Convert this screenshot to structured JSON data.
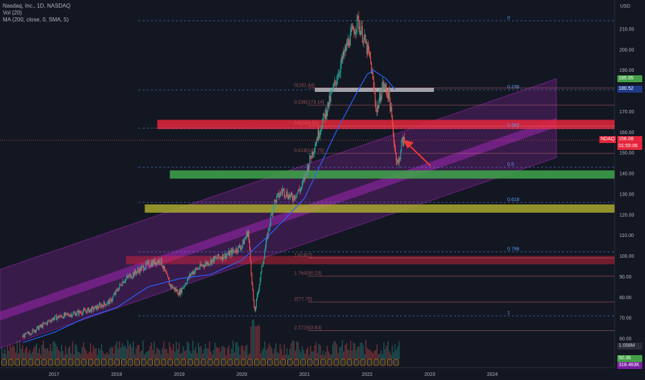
{
  "legend": {
    "title": "Nasdaq, Inc., 1D, NASDAQ",
    "vol": "Vol (20)",
    "ma": "MA (200, close, 0, SMA, 5)"
  },
  "colors": {
    "background": "#131722",
    "up": "#26a69a",
    "down": "#ef5350",
    "ma": "#2962ff",
    "channel": "#9c27b0",
    "red_zone": "#e5263b",
    "green_zone": "#3fa64a",
    "yellow_zone": "#b2b230",
    "gray_bar": "#bdbdbd",
    "fib": "#5b9cf6"
  },
  "price_badges": {
    "current": "156.08",
    "timer": "01:55:06",
    "ticker": "NDAQ",
    "high_level": "185.95",
    "ma_level": "180.52",
    "vol_value": "1.058M",
    "bottom1": "50.36",
    "bottom2": "318.463K"
  },
  "chart_data": {
    "type": "candlestick",
    "title": "Nasdaq, Inc., 1D, NASDAQ",
    "ylabel": "USD",
    "ylim": [
      50,
      217
    ],
    "y_ticks": [
      "60.00",
      "70.00",
      "80.00",
      "90.00",
      "100.00",
      "110.00",
      "120.00",
      "130.00",
      "140.00",
      "150.00",
      "160.00",
      "170.00",
      "180.00",
      "190.00",
      "200.00",
      "210.00"
    ],
    "x_ticks": [
      "2017",
      "2018",
      "2019",
      "2020",
      "2021",
      "2022",
      "2023",
      "2024"
    ],
    "price_path": [
      {
        "x": 2016.5,
        "y": 61
      },
      {
        "x": 2016.8,
        "y": 66
      },
      {
        "x": 2017.0,
        "y": 70
      },
      {
        "x": 2017.3,
        "y": 72
      },
      {
        "x": 2017.6,
        "y": 74
      },
      {
        "x": 2017.9,
        "y": 78
      },
      {
        "x": 2018.1,
        "y": 88
      },
      {
        "x": 2018.3,
        "y": 92
      },
      {
        "x": 2018.5,
        "y": 96
      },
      {
        "x": 2018.7,
        "y": 98
      },
      {
        "x": 2018.85,
        "y": 86
      },
      {
        "x": 2019.0,
        "y": 82
      },
      {
        "x": 2019.2,
        "y": 92
      },
      {
        "x": 2019.4,
        "y": 96
      },
      {
        "x": 2019.6,
        "y": 99
      },
      {
        "x": 2019.8,
        "y": 101
      },
      {
        "x": 2020.0,
        "y": 105
      },
      {
        "x": 2020.1,
        "y": 112
      },
      {
        "x": 2020.2,
        "y": 72
      },
      {
        "x": 2020.35,
        "y": 100
      },
      {
        "x": 2020.5,
        "y": 125
      },
      {
        "x": 2020.65,
        "y": 132
      },
      {
        "x": 2020.8,
        "y": 128
      },
      {
        "x": 2020.95,
        "y": 133
      },
      {
        "x": 2021.1,
        "y": 148
      },
      {
        "x": 2021.25,
        "y": 162
      },
      {
        "x": 2021.4,
        "y": 175
      },
      {
        "x": 2021.55,
        "y": 190
      },
      {
        "x": 2021.7,
        "y": 204
      },
      {
        "x": 2021.85,
        "y": 214
      },
      {
        "x": 2021.95,
        "y": 205
      },
      {
        "x": 2022.05,
        "y": 195
      },
      {
        "x": 2022.15,
        "y": 170
      },
      {
        "x": 2022.25,
        "y": 183
      },
      {
        "x": 2022.35,
        "y": 178
      },
      {
        "x": 2022.45,
        "y": 150
      },
      {
        "x": 2022.5,
        "y": 144
      },
      {
        "x": 2022.55,
        "y": 155
      },
      {
        "x": 2022.6,
        "y": 156.08
      }
    ],
    "ma200_path": [
      {
        "x": 2016.5,
        "y": 58
      },
      {
        "x": 2017.0,
        "y": 63
      },
      {
        "x": 2017.5,
        "y": 70
      },
      {
        "x": 2018.0,
        "y": 75
      },
      {
        "x": 2018.5,
        "y": 85
      },
      {
        "x": 2019.0,
        "y": 89
      },
      {
        "x": 2019.5,
        "y": 91
      },
      {
        "x": 2020.0,
        "y": 98
      },
      {
        "x": 2020.5,
        "y": 112
      },
      {
        "x": 2021.0,
        "y": 128
      },
      {
        "x": 2021.5,
        "y": 160
      },
      {
        "x": 2021.85,
        "y": 180
      },
      {
        "x": 2022.0,
        "y": 188
      },
      {
        "x": 2022.1,
        "y": 190
      },
      {
        "x": 2022.3,
        "y": 186
      },
      {
        "x": 2022.45,
        "y": 180.52
      }
    ],
    "fib_levels": [
      {
        "label": "0",
        "price": 214
      },
      {
        "label": "0.236",
        "price": 180.52
      },
      {
        "label": "0.382",
        "price": 162
      },
      {
        "label": "0.5",
        "price": 143
      },
      {
        "label": "0.618",
        "price": 126
      },
      {
        "label": "0.786",
        "price": 102
      },
      {
        "label": "1",
        "price": 71
      }
    ],
    "ext_levels": [
      {
        "label": "0(181.44)",
        "price": 181.44
      },
      {
        "label": "0.236(173.14)",
        "price": 173.14
      },
      {
        "label": "0.5(163.00)",
        "price": 163.0
      },
      {
        "label": "0.618(149.75)",
        "price": 149.75
      },
      {
        "label": "1.618(?)",
        "price": 99
      },
      {
        "label": "1.764(90.23)",
        "price": 90.23
      },
      {
        "label": "2(77.75)",
        "price": 77.75
      },
      {
        "label": "2.272(63.83)",
        "price": 63.83
      }
    ],
    "zones": [
      {
        "name": "resistance",
        "price_top": 166,
        "price_bottom": 161.5,
        "x_start": 2018.65
      },
      {
        "name": "support",
        "price_top": 141.5,
        "price_bottom": 137.5,
        "x_start": 2018.85
      },
      {
        "name": "support-2",
        "price_top": 125,
        "price_bottom": 121,
        "x_start": 2018.45
      },
      {
        "name": "support-3",
        "price_top": 100,
        "price_bottom": 96,
        "x_start": 2018.15
      }
    ]
  }
}
